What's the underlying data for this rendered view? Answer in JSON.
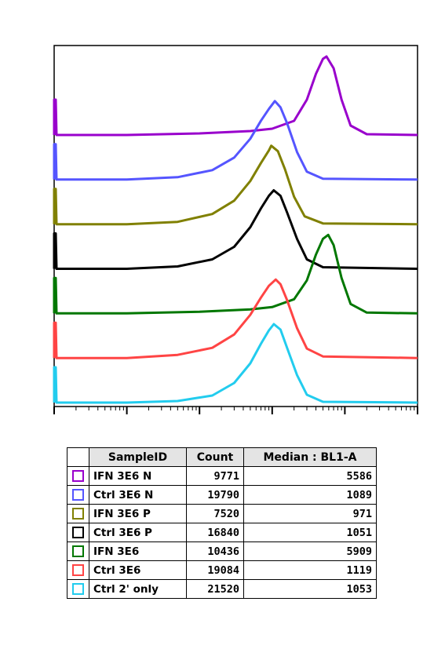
{
  "chart_data": {
    "type": "area",
    "xscale": "log",
    "grid": false,
    "stacked_offset": true,
    "series": [
      {
        "name": "IFN 3E6 N",
        "color": "#9900cc",
        "count": 9771,
        "median": 5586,
        "x": [
          10,
          100,
          500,
          1000,
          2000,
          3000,
          4000,
          5000,
          5586,
          7000,
          9000,
          12000,
          20000,
          100000
        ],
        "y": [
          0,
          0.02,
          0.05,
          0.08,
          0.18,
          0.45,
          0.78,
          0.97,
          1.0,
          0.85,
          0.45,
          0.12,
          0.01,
          0
        ]
      },
      {
        "name": "Ctrl 3E6 N",
        "color": "#5555ff",
        "count": 19790,
        "median": 1089,
        "x": [
          10,
          50,
          150,
          300,
          500,
          700,
          900,
          1089,
          1300,
          1600,
          2200,
          3000,
          5000,
          100000
        ],
        "y": [
          0,
          0.03,
          0.12,
          0.28,
          0.52,
          0.75,
          0.9,
          1.0,
          0.92,
          0.72,
          0.35,
          0.1,
          0.01,
          0
        ]
      },
      {
        "name": "IFN 3E6 P",
        "color": "#808000",
        "count": 7520,
        "median": 971,
        "x": [
          10,
          50,
          150,
          300,
          500,
          700,
          900,
          971,
          1200,
          1500,
          2000,
          2800,
          5000,
          100000
        ],
        "y": [
          0,
          0.03,
          0.13,
          0.3,
          0.55,
          0.78,
          0.94,
          1.0,
          0.93,
          0.7,
          0.35,
          0.1,
          0.01,
          0
        ]
      },
      {
        "name": "Ctrl 3E6 P",
        "color": "#000000",
        "count": 16840,
        "median": 1051,
        "x": [
          10,
          50,
          150,
          300,
          500,
          700,
          900,
          1051,
          1300,
          1600,
          2200,
          3000,
          5000,
          100000
        ],
        "y": [
          0,
          0.03,
          0.12,
          0.28,
          0.53,
          0.77,
          0.93,
          1.0,
          0.93,
          0.72,
          0.38,
          0.12,
          0.02,
          0
        ]
      },
      {
        "name": "IFN 3E6",
        "color": "#007700",
        "count": 10436,
        "median": 5909,
        "x": [
          10,
          100,
          500,
          1000,
          2000,
          3000,
          4000,
          5000,
          5909,
          7000,
          9000,
          12000,
          20000,
          100000
        ],
        "y": [
          0,
          0.02,
          0.05,
          0.08,
          0.18,
          0.42,
          0.75,
          0.95,
          1.0,
          0.87,
          0.45,
          0.12,
          0.01,
          0
        ]
      },
      {
        "name": "Ctrl 3E6",
        "color": "#ff4444",
        "count": 19084,
        "median": 1119,
        "x": [
          10,
          50,
          150,
          300,
          500,
          700,
          900,
          1119,
          1300,
          1600,
          2200,
          3000,
          5000,
          100000
        ],
        "y": [
          0,
          0.04,
          0.13,
          0.3,
          0.55,
          0.77,
          0.92,
          1.0,
          0.94,
          0.74,
          0.38,
          0.12,
          0.02,
          0
        ]
      },
      {
        "name": "Ctrl 2' only",
        "color": "#22ccee",
        "count": 21520,
        "median": 1053,
        "x": [
          10,
          50,
          150,
          300,
          500,
          700,
          900,
          1053,
          1300,
          1600,
          2200,
          3000,
          5000,
          100000
        ],
        "y": [
          0,
          0.02,
          0.09,
          0.25,
          0.5,
          0.75,
          0.92,
          1.0,
          0.93,
          0.7,
          0.35,
          0.1,
          0.01,
          0
        ]
      }
    ]
  },
  "table": {
    "headers": [
      "SampleID",
      "Count",
      "Median : BL1-A"
    ],
    "rows": [
      {
        "id": "IFN 3E6 N",
        "count": "9771",
        "median": "5586",
        "color": "#9900cc"
      },
      {
        "id": "Ctrl 3E6 N",
        "count": "19790",
        "median": "1089",
        "color": "#5555ff"
      },
      {
        "id": "IFN 3E6 P",
        "count": "7520",
        "median": "971",
        "color": "#808000"
      },
      {
        "id": "Ctrl 3E6 P",
        "count": "16840",
        "median": "1051",
        "color": "#000000"
      },
      {
        "id": "IFN 3E6",
        "count": "10436",
        "median": "5909",
        "color": "#007700"
      },
      {
        "id": "Ctrl 3E6",
        "count": "19084",
        "median": "1119",
        "color": "#ff4444"
      },
      {
        "id": "Ctrl 2' only",
        "count": "21520",
        "median": "1053",
        "color": "#22ccee"
      }
    ]
  }
}
